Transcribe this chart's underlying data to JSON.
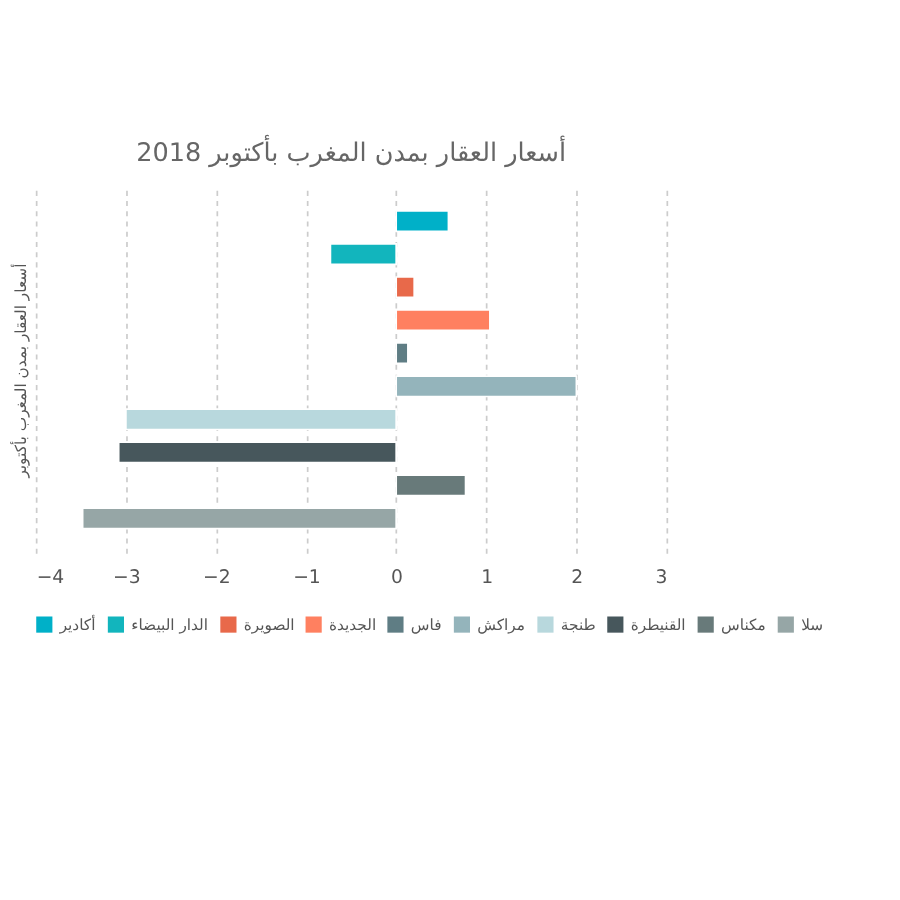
{
  "chart_data": {
    "type": "bar",
    "orientation": "horizontal",
    "title": "أسعار العقار بمدن المغرب بأكتوبر 2018",
    "ylabel": "أسعار العقار بمدن المغرب بأكتوبر",
    "categories": [
      null
    ],
    "series": [
      {
        "name": "أكادير",
        "color": "#00b0c8",
        "values": [
          0.58
        ]
      },
      {
        "name": "الدار البيضاء",
        "color": "#12b5bd",
        "values": [
          -0.73
        ]
      },
      {
        "name": "الصويرة",
        "color": "#e8694a",
        "values": [
          0.2
        ]
      },
      {
        "name": "الجديدة",
        "color": "#ff8060",
        "values": [
          1.04
        ]
      },
      {
        "name": "فاس",
        "color": "#5f7d84",
        "values": [
          0.13
        ]
      },
      {
        "name": "مراكش",
        "color": "#94b4bb",
        "values": [
          2.0
        ]
      },
      {
        "name": "طنجة",
        "color": "#b8d8dd",
        "values": [
          -3.0
        ]
      },
      {
        "name": "القنيطرة",
        "color": "#47575c",
        "values": [
          -3.08
        ]
      },
      {
        "name": "مكناس",
        "color": "#687a7a",
        "values": [
          0.77
        ]
      },
      {
        "name": "سلا",
        "color": "#96a6a6",
        "values": [
          -3.48
        ]
      }
    ],
    "xlim": [
      -4,
      3
    ],
    "xticks": [
      -4,
      -3,
      -2,
      -1,
      0,
      1,
      2,
      3
    ],
    "grid": "x",
    "legend": "bottom"
  }
}
